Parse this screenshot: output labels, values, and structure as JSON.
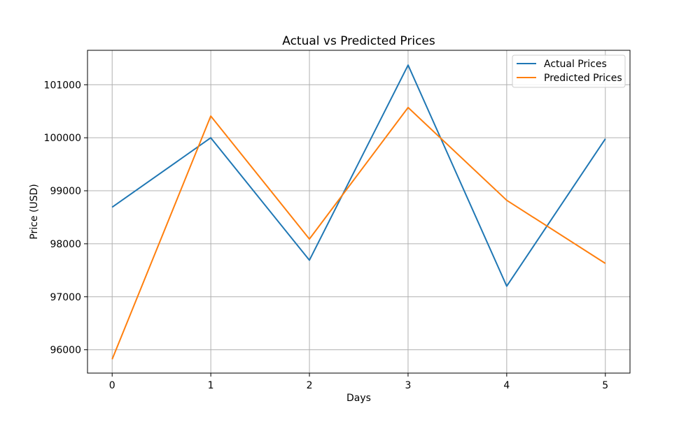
{
  "chart_data": {
    "type": "line",
    "title": "Actual vs Predicted Prices",
    "xlabel": "Days",
    "ylabel": "Price (USD)",
    "x": [
      0,
      1,
      2,
      3,
      4,
      5
    ],
    "xticks": [
      "0",
      "1",
      "2",
      "3",
      "4",
      "5"
    ],
    "yticks": [
      96000,
      97000,
      98000,
      99000,
      100000,
      101000
    ],
    "ytick_labels": [
      "96000",
      "97000",
      "98000",
      "99000",
      "100000",
      "101000"
    ],
    "xlim": [
      -0.25,
      5.25
    ],
    "ylim": [
      95560,
      101650
    ],
    "grid": true,
    "legend_position": "top-right",
    "series": [
      {
        "name": "Actual Prices",
        "color": "#1f77b4",
        "values": [
          98690,
          100000,
          97690,
          101370,
          97200,
          99980
        ]
      },
      {
        "name": "Predicted Prices",
        "color": "#ff7f0e",
        "values": [
          95820,
          100410,
          98090,
          100570,
          98820,
          97630
        ]
      }
    ]
  }
}
